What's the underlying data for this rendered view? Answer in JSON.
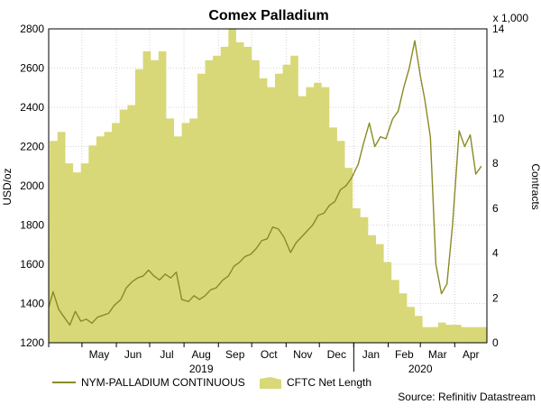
{
  "chart_data": {
    "type": "line",
    "title": "Comex Palladium",
    "ylabel": "USD/oz",
    "y2label": "Contracts",
    "y2_multiplier_label": "x 1,000",
    "source": "Source: Refinitiv Datastream",
    "ylim": [
      1200,
      2800
    ],
    "y2lim": [
      0,
      14
    ],
    "yticks": [
      "1200",
      "1400",
      "1600",
      "1800",
      "2000",
      "2200",
      "2400",
      "2600",
      "2800"
    ],
    "y2ticks": [
      "0",
      "2",
      "4",
      "6",
      "8",
      "10",
      "12",
      "14"
    ],
    "month_labels": [
      "May",
      "Jun",
      "Jul",
      "Aug",
      "Sep",
      "Oct",
      "Nov",
      "Dec",
      "Jan",
      "Feb",
      "Mar",
      "Apr"
    ],
    "year_labels": [
      "2019",
      "2020"
    ],
    "grid": true,
    "legend_position": "bottom",
    "colors": {
      "line": "#8a8a24",
      "area": "#d8d878",
      "grid": "#c8c8c8"
    },
    "series": [
      {
        "name": "CFTC Net Length",
        "type": "area",
        "axis": "right",
        "x": [
          "2019-04-02",
          "2019-04-09",
          "2019-04-16",
          "2019-04-23",
          "2019-04-30",
          "2019-05-07",
          "2019-05-14",
          "2019-05-21",
          "2019-05-28",
          "2019-06-04",
          "2019-06-11",
          "2019-06-18",
          "2019-06-25",
          "2019-07-02",
          "2019-07-09",
          "2019-07-16",
          "2019-07-23",
          "2019-07-30",
          "2019-08-06",
          "2019-08-13",
          "2019-08-20",
          "2019-08-27",
          "2019-09-03",
          "2019-09-10",
          "2019-09-17",
          "2019-09-24",
          "2019-10-01",
          "2019-10-08",
          "2019-10-15",
          "2019-10-22",
          "2019-10-29",
          "2019-11-05",
          "2019-11-12",
          "2019-11-19",
          "2019-11-26",
          "2019-12-03",
          "2019-12-10",
          "2019-12-17",
          "2019-12-24",
          "2019-12-31",
          "2020-01-07",
          "2020-01-14",
          "2020-01-21",
          "2020-01-28",
          "2020-02-04",
          "2020-02-11",
          "2020-02-18",
          "2020-02-25",
          "2020-03-03",
          "2020-03-10",
          "2020-03-17",
          "2020-03-24",
          "2020-03-31",
          "2020-04-07",
          "2020-04-14",
          "2020-04-21"
        ],
        "values": [
          9.0,
          9.4,
          8.0,
          7.6,
          8.0,
          8.8,
          9.2,
          9.4,
          9.8,
          10.4,
          10.6,
          12.2,
          13.0,
          12.6,
          13.0,
          10.0,
          9.2,
          9.8,
          10.0,
          12.0,
          12.6,
          12.8,
          13.2,
          14.0,
          13.4,
          13.2,
          12.6,
          11.8,
          11.4,
          12.0,
          12.4,
          12.8,
          11.0,
          11.4,
          11.6,
          11.4,
          9.6,
          9.0,
          7.8,
          6.0,
          5.6,
          4.8,
          4.4,
          3.6,
          2.8,
          2.2,
          1.6,
          1.2,
          0.7,
          0.7,
          0.9,
          0.8,
          0.8,
          0.7,
          0.7,
          0.7
        ]
      },
      {
        "name": "NYM-PALLADIUM CONTINUOUS",
        "type": "line",
        "axis": "left",
        "x": [
          "2019-04-01",
          "2019-04-05",
          "2019-04-10",
          "2019-04-15",
          "2019-04-20",
          "2019-04-25",
          "2019-04-30",
          "2019-05-05",
          "2019-05-10",
          "2019-05-15",
          "2019-05-20",
          "2019-05-25",
          "2019-05-30",
          "2019-06-05",
          "2019-06-10",
          "2019-06-15",
          "2019-06-20",
          "2019-06-25",
          "2019-06-30",
          "2019-07-05",
          "2019-07-10",
          "2019-07-15",
          "2019-07-20",
          "2019-07-25",
          "2019-07-30",
          "2019-08-05",
          "2019-08-10",
          "2019-08-15",
          "2019-08-20",
          "2019-08-25",
          "2019-08-30",
          "2019-09-05",
          "2019-09-10",
          "2019-09-15",
          "2019-09-20",
          "2019-09-25",
          "2019-09-30",
          "2019-10-05",
          "2019-10-10",
          "2019-10-15",
          "2019-10-20",
          "2019-10-25",
          "2019-10-30",
          "2019-11-05",
          "2019-11-10",
          "2019-11-15",
          "2019-11-20",
          "2019-11-25",
          "2019-11-30",
          "2019-12-05",
          "2019-12-10",
          "2019-12-15",
          "2019-12-20",
          "2019-12-25",
          "2019-12-30",
          "2020-01-05",
          "2020-01-10",
          "2020-01-15",
          "2020-01-20",
          "2020-01-25",
          "2020-01-30",
          "2020-02-05",
          "2020-02-10",
          "2020-02-15",
          "2020-02-20",
          "2020-02-25",
          "2020-03-01",
          "2020-03-05",
          "2020-03-10",
          "2020-03-15",
          "2020-03-20",
          "2020-03-25",
          "2020-03-30",
          "2020-04-05",
          "2020-04-10",
          "2020-04-15",
          "2020-04-20",
          "2020-04-25"
        ],
        "values": [
          1380,
          1460,
          1370,
          1330,
          1290,
          1360,
          1310,
          1320,
          1300,
          1330,
          1340,
          1350,
          1390,
          1420,
          1480,
          1510,
          1530,
          1540,
          1570,
          1540,
          1520,
          1550,
          1530,
          1560,
          1420,
          1410,
          1440,
          1420,
          1440,
          1470,
          1480,
          1520,
          1540,
          1590,
          1610,
          1640,
          1650,
          1680,
          1720,
          1730,
          1790,
          1780,
          1740,
          1660,
          1710,
          1740,
          1770,
          1800,
          1850,
          1860,
          1900,
          1920,
          1980,
          2000,
          2040,
          2110,
          2220,
          2320,
          2200,
          2250,
          2240,
          2340,
          2380,
          2500,
          2600,
          2740,
          2560,
          2440,
          2250,
          1600,
          1450,
          1500,
          1800,
          2280,
          2200,
          2260,
          2060,
          2100
        ]
      }
    ]
  }
}
